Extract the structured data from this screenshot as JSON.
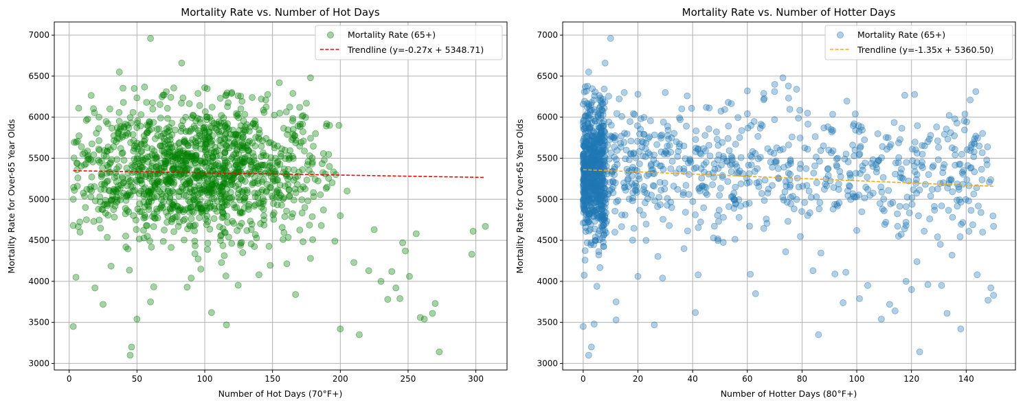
{
  "figure": {
    "background": "#ffffff"
  },
  "chart_data": [
    {
      "type": "scatter",
      "title": "Mortality Rate vs. Number of Hot Days",
      "xlabel": "Number of Hot Days (70°F+)",
      "ylabel": "Mortality Rate for Over-65 Year Olds",
      "xlim": [
        -11,
        323
      ],
      "ylim": [
        2920,
        7160
      ],
      "xticks": [
        0,
        50,
        100,
        150,
        200,
        250,
        300
      ],
      "yticks": [
        3000,
        3500,
        4000,
        4500,
        5000,
        5500,
        6000,
        6500,
        7000
      ],
      "grid": true,
      "legend_position": "top-right",
      "scatter_color": "#008000",
      "scatter_alpha": 0.35,
      "scatter_label": "Mortality Rate (65+)",
      "sample_points": [
        [
          3,
          3450
        ],
        [
          60,
          6960
        ],
        [
          83,
          6660
        ],
        [
          37,
          6550
        ],
        [
          178,
          6480
        ],
        [
          155,
          6420
        ],
        [
          273,
          3140
        ],
        [
          45,
          3100
        ],
        [
          46,
          3200
        ],
        [
          214,
          3350
        ],
        [
          116,
          3470
        ],
        [
          50,
          3540
        ],
        [
          60,
          3750
        ],
        [
          200,
          3420
        ],
        [
          268,
          3610
        ],
        [
          297,
          4330
        ],
        [
          307,
          4670
        ],
        [
          298,
          4610
        ],
        [
          270,
          3730
        ],
        [
          259,
          3560
        ],
        [
          262,
          3540
        ],
        [
          256,
          4580
        ],
        [
          246,
          4470
        ],
        [
          248,
          4370
        ],
        [
          235,
          3780
        ],
        [
          241,
          3920
        ],
        [
          230,
          4000
        ],
        [
          238,
          4120
        ],
        [
          251,
          4060
        ],
        [
          244,
          3790
        ],
        [
          221,
          4130
        ],
        [
          225,
          4630
        ],
        [
          210,
          4230
        ],
        [
          196,
          4490
        ],
        [
          186,
          4680
        ],
        [
          200,
          4800
        ],
        [
          205,
          5100
        ],
        [
          192,
          5400
        ],
        [
          190,
          5920
        ],
        [
          175,
          6170
        ],
        [
          167,
          3840
        ],
        [
          178,
          4280
        ],
        [
          128,
          4350
        ],
        [
          140,
          4080
        ],
        [
          90,
          4040
        ],
        [
          105,
          3620
        ],
        [
          87,
          3930
        ],
        [
          25,
          3720
        ],
        [
          19,
          3920
        ],
        [
          5,
          4050
        ],
        [
          8,
          4600
        ],
        [
          3,
          4680
        ],
        [
          12,
          4900
        ],
        [
          6,
          5160
        ],
        [
          3,
          5000
        ],
        [
          10,
          5550
        ],
        [
          7,
          6110
        ],
        [
          22,
          6000
        ],
        [
          30,
          6100
        ],
        [
          40,
          6180
        ],
        [
          48,
          6350
        ],
        [
          70,
          6270
        ],
        [
          95,
          6290
        ],
        [
          100,
          6360
        ],
        [
          120,
          6300
        ],
        [
          135,
          6240
        ],
        [
          145,
          6210
        ],
        [
          165,
          6290
        ],
        [
          170,
          6120
        ]
      ],
      "cluster": {
        "x_range": [
          3,
          200
        ],
        "y_center": 5350,
        "y_sd": 420,
        "x_peak": 95,
        "count": 1350
      },
      "trendline": {
        "label": "Trendline (y=-0.27x + 5348.71)",
        "slope": -0.27,
        "intercept": 5348.71,
        "x_range": [
          3,
          307
        ],
        "color": "#ff0000",
        "style": "dashed"
      }
    },
    {
      "type": "scatter",
      "title": "Mortality Rate vs. Number of Hotter Days",
      "xlabel": "Number of Hotter Days (80°F+)",
      "ylabel": "Mortality Rate for Over-65 Year Olds",
      "xlim": [
        -7.5,
        158
      ],
      "ylim": [
        2920,
        7160
      ],
      "xticks": [
        0,
        20,
        40,
        60,
        80,
        100,
        120,
        140
      ],
      "yticks": [
        3000,
        3500,
        4000,
        4500,
        5000,
        5500,
        6000,
        6500,
        7000
      ],
      "grid": true,
      "legend_position": "top-right",
      "scatter_color": "#1f77b4",
      "scatter_alpha": 0.35,
      "scatter_label": "Mortality Rate (65+)",
      "sample_points": [
        [
          10,
          6960
        ],
        [
          8,
          6660
        ],
        [
          2,
          6550
        ],
        [
          73,
          6480
        ],
        [
          70,
          6400
        ],
        [
          75,
          6380
        ],
        [
          123,
          3140
        ],
        [
          2,
          3100
        ],
        [
          3,
          3200
        ],
        [
          86,
          3350
        ],
        [
          26,
          3470
        ],
        [
          4,
          3480
        ],
        [
          0,
          3450
        ],
        [
          150,
          3830
        ],
        [
          149,
          3920
        ],
        [
          148,
          3770
        ],
        [
          144,
          4080
        ],
        [
          138,
          3420
        ],
        [
          133,
          3610
        ],
        [
          131,
          3950
        ],
        [
          126,
          3960
        ],
        [
          120,
          3900
        ],
        [
          118,
          4000
        ],
        [
          122,
          4240
        ],
        [
          112,
          3720
        ],
        [
          114,
          3640
        ],
        [
          109,
          3540
        ],
        [
          104,
          3950
        ],
        [
          101,
          3790
        ],
        [
          95,
          3740
        ],
        [
          96,
          4110
        ],
        [
          92,
          4090
        ],
        [
          84,
          4130
        ],
        [
          74,
          4360
        ],
        [
          63,
          3850
        ],
        [
          41,
          3620
        ],
        [
          42,
          4080
        ],
        [
          29,
          4040
        ],
        [
          20,
          4060
        ],
        [
          12,
          3750
        ],
        [
          12,
          3530
        ],
        [
          5,
          3940
        ],
        [
          150,
          4670
        ],
        [
          146,
          4600
        ],
        [
          141,
          4610
        ],
        [
          135,
          4780
        ],
        [
          131,
          4920
        ],
        [
          127,
          5040
        ],
        [
          122,
          5300
        ],
        [
          122,
          5450
        ],
        [
          116,
          5320
        ],
        [
          112,
          5640
        ],
        [
          111,
          5610
        ],
        [
          107,
          5420
        ],
        [
          99,
          5920
        ],
        [
          93,
          5500
        ],
        [
          88,
          5870
        ],
        [
          82,
          6050
        ],
        [
          78,
          6340
        ],
        [
          66,
          6290
        ],
        [
          60,
          6320
        ],
        [
          53,
          6180
        ],
        [
          45,
          6120
        ],
        [
          38,
          6260
        ],
        [
          30,
          6300
        ],
        [
          20,
          6280
        ],
        [
          15,
          6300
        ],
        [
          104,
          5120
        ],
        [
          110,
          4860
        ],
        [
          118,
          4720
        ],
        [
          100,
          4620
        ]
      ],
      "cluster": {
        "x_range": [
          0,
          150
        ],
        "y_center": 5350,
        "y_sd": 420,
        "x_peak": 0,
        "count": 1350
      },
      "trendline": {
        "label": "Trendline (y=-1.35x + 5360.50)",
        "slope": -1.35,
        "intercept": 5360.5,
        "x_range": [
          0,
          150
        ],
        "color": "#ffa500",
        "style": "dashed"
      }
    }
  ]
}
